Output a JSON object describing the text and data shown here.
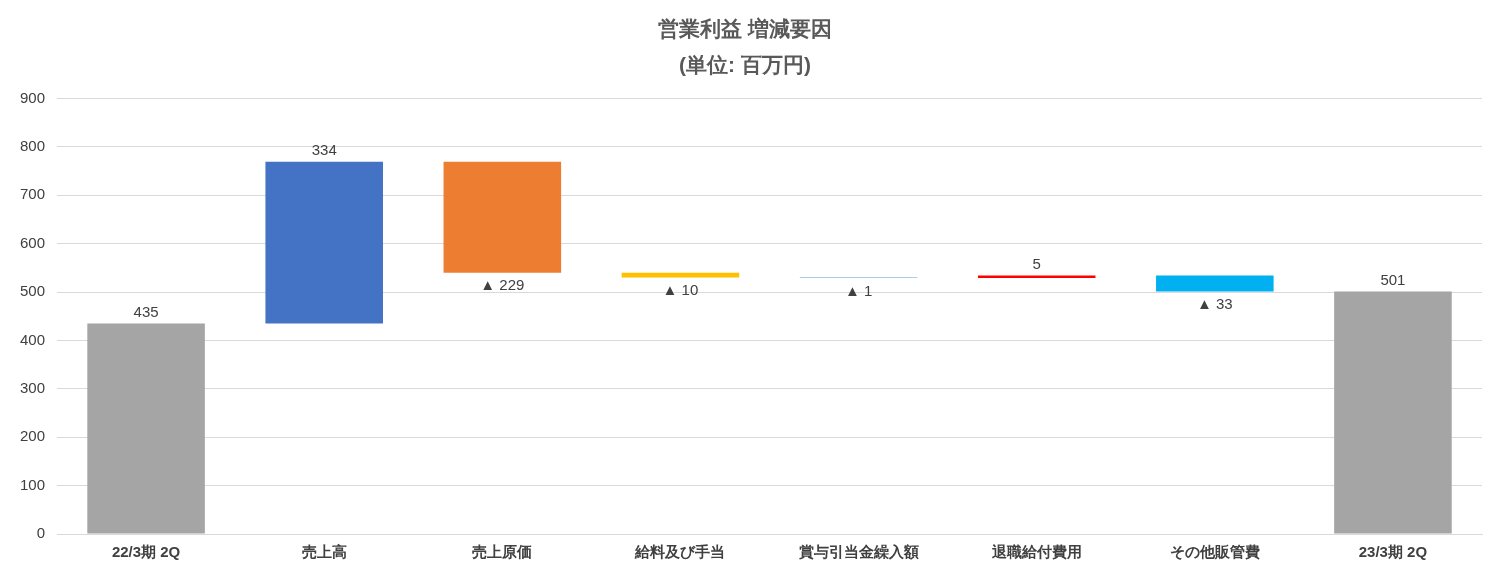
{
  "chart_data": {
    "type": "bar",
    "title": "営業利益 増減要因",
    "subtitle": "(単位: 百万円)",
    "categories": [
      "22/3期 2Q",
      "売上高",
      "売上原価",
      "給料及び手当",
      "賞与引当金繰入額",
      "退職給付費用",
      "その他販管費",
      "23/3期 2Q"
    ],
    "values": [
      435,
      334,
      -229,
      -10,
      -1,
      5,
      -33,
      501
    ],
    "base": [
      0,
      435,
      769,
      540,
      530,
      529,
      534,
      0
    ],
    "colors": [
      "#a5a5a5",
      "#4472c4",
      "#ed7d31",
      "#ffc000",
      "#5b9bd5",
      "#ff0000",
      "#00b0f0",
      "#a5a5a5"
    ],
    "value_labels": [
      "435",
      "334",
      "▲ 229",
      "▲ 10",
      "▲ 1",
      "5",
      "▲ 33",
      "501"
    ],
    "ylim": [
      0,
      900
    ],
    "yticks": [
      0,
      100,
      200,
      300,
      400,
      500,
      600,
      700,
      800,
      900
    ],
    "grid": "y",
    "legend": false
  }
}
